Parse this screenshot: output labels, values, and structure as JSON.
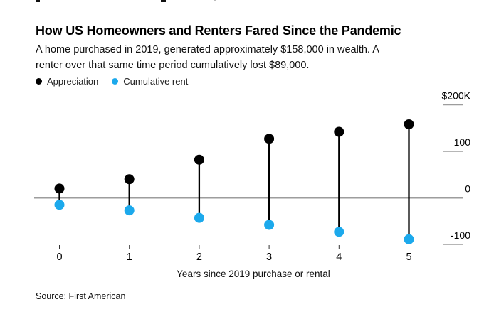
{
  "header": {
    "title": "How US Homeowners and Renters Fared Since the Pandemic",
    "subtitle_line1": "A home purchased in 2019, generated approximately $158,000 in wealth. A",
    "subtitle_line2": "renter over that same time period cumulatively lost $89,000."
  },
  "legend": {
    "items": [
      {
        "label": "Appreciation",
        "color": "#000000"
      },
      {
        "label": "Cumulative rent",
        "color": "#1ca9ec"
      }
    ]
  },
  "axis": {
    "x_title": "Years since 2019 purchase or rental"
  },
  "source": "Source: First American",
  "colors": {
    "appreciation": "#000000",
    "cumulative_rent": "#1ca9ec",
    "zero_line": "#9d9d9d",
    "right_tick_line": "#9d9d9d",
    "x_tick_line": "#333333",
    "text": "#000000"
  },
  "chart_data": {
    "type": "scatter",
    "variant": "dumbbell-lollipop",
    "title": "How US Homeowners and Renters Fared Since the Pandemic",
    "x": [
      0,
      1,
      2,
      3,
      4,
      5
    ],
    "x_tick_labels": [
      "0",
      "1",
      "2",
      "3",
      "4",
      "5"
    ],
    "xlabel": "Years since 2019 purchase or rental",
    "ylabel": "",
    "y_unit": "USD thousands",
    "ylim": [
      -130,
      215
    ],
    "y_ticks": [
      {
        "value": 200,
        "label": "$200K"
      },
      {
        "value": 100,
        "label": "100"
      },
      {
        "value": 0,
        "label": "0"
      },
      {
        "value": -100,
        "label": "-100"
      }
    ],
    "zero_baseline": true,
    "grid": false,
    "legend_position": "top-left",
    "series": [
      {
        "name": "Appreciation",
        "color": "#000000",
        "values": [
          20,
          40,
          82,
          127,
          142,
          158
        ]
      },
      {
        "name": "Cumulative rent",
        "color": "#1ca9ec",
        "values": [
          -15,
          -27,
          -43,
          -58,
          -73,
          -89
        ]
      }
    ]
  }
}
